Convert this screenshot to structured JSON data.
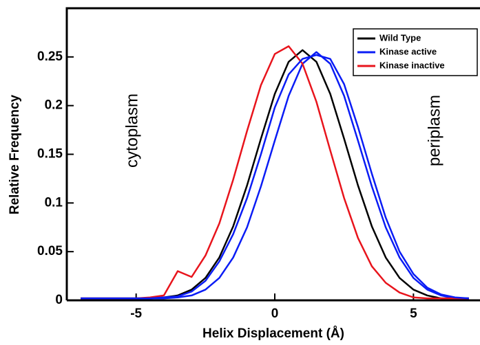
{
  "chart_data": {
    "type": "line",
    "x_label": "Helix Displacement (Å)",
    "y_label": "Relative Frequency",
    "annotations": [
      "cytoplasm",
      "periplasm"
    ],
    "x": [
      -7,
      -6.5,
      -6,
      -5.5,
      -5,
      -4.5,
      -4,
      -3.5,
      -3,
      -2.5,
      -2,
      -1.5,
      -1,
      -0.5,
      0,
      0.5,
      1,
      1.5,
      2,
      2.5,
      3,
      3.5,
      4,
      4.5,
      5,
      5.5,
      6,
      6.5,
      7
    ],
    "series": [
      {
        "name": "Wild Type",
        "color": "#000000",
        "values": [
          0.002,
          0.002,
          0.002,
          0.002,
          0.002,
          0.002,
          0.003,
          0.005,
          0.011,
          0.023,
          0.044,
          0.076,
          0.118,
          0.166,
          0.212,
          0.245,
          0.257,
          0.245,
          0.212,
          0.166,
          0.118,
          0.076,
          0.044,
          0.023,
          0.011,
          0.005,
          0.002,
          0.002,
          0.002
        ]
      },
      {
        "name": "Kinase active",
        "color": "#0a1cf5",
        "values": [
          0.002,
          0.002,
          0.002,
          0.002,
          0.002,
          0.002,
          0.002,
          0.003,
          0.005,
          0.011,
          0.023,
          0.044,
          0.075,
          0.117,
          0.164,
          0.21,
          0.243,
          0.255,
          0.243,
          0.21,
          0.164,
          0.117,
          0.075,
          0.044,
          0.023,
          0.011,
          0.005,
          0.002,
          0.002
        ]
      },
      {
        "name": "Kinase inactive",
        "color": "#e8141c",
        "values": [
          0.002,
          0.002,
          0.002,
          0.002,
          0.002,
          0.003,
          0.005,
          0.03,
          0.024,
          0.046,
          0.079,
          0.124,
          0.174,
          0.221,
          0.253,
          0.261,
          0.243,
          0.204,
          0.154,
          0.105,
          0.064,
          0.035,
          0.018,
          0.008,
          0.003,
          0.002,
          0.002,
          0.002,
          0.002
        ]
      },
      {
        "color": "#0a1cf5",
        "values": [
          0.002,
          0.002,
          0.002,
          0.002,
          0.002,
          0.002,
          0.003,
          0.004,
          0.009,
          0.02,
          0.04,
          0.068,
          0.105,
          0.15,
          0.198,
          0.232,
          0.248,
          0.252,
          0.248,
          0.222,
          0.178,
          0.13,
          0.085,
          0.05,
          0.027,
          0.013,
          0.006,
          0.003,
          0.002
        ]
      }
    ],
    "xlim": [
      -7.5,
      7.4
    ],
    "ylim": [
      0,
      0.3
    ],
    "xticks": [
      -5,
      0,
      5
    ],
    "yticks": [
      0,
      0.05,
      0.1,
      0.15,
      0.2,
      0.25
    ],
    "legend": "upper right"
  }
}
